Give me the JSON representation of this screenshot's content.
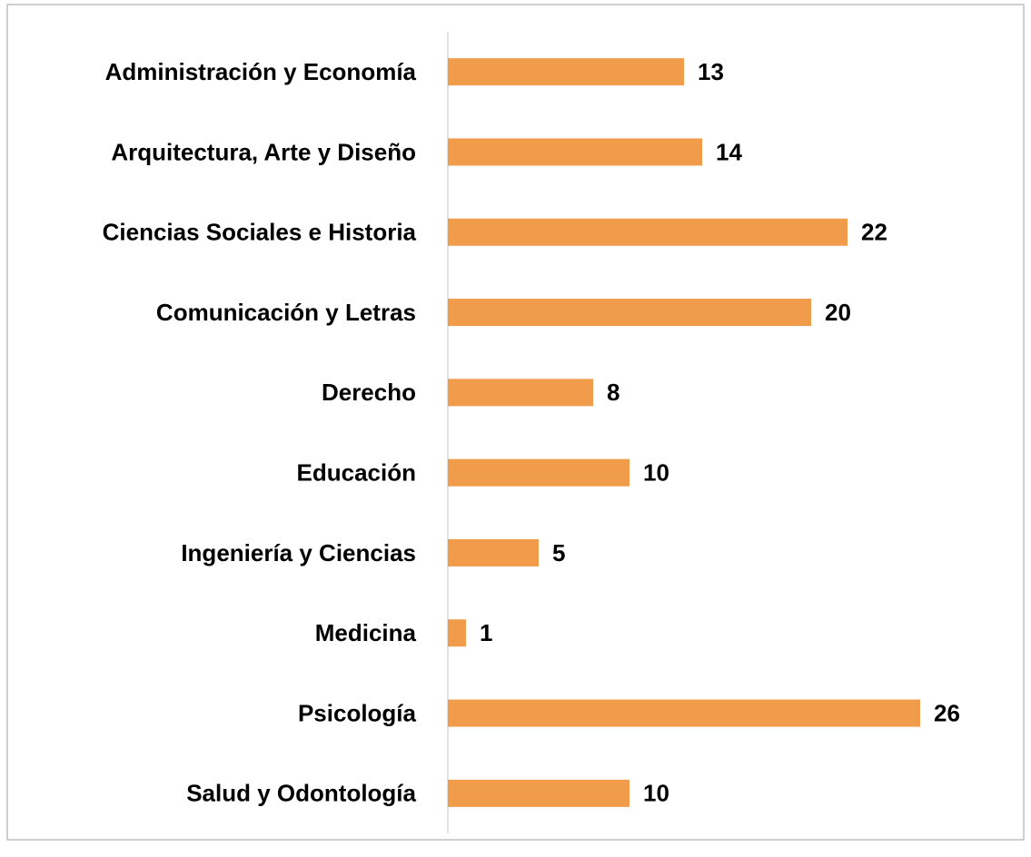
{
  "chart_data": {
    "type": "hbar",
    "categories": [
      "Administración y Economía",
      "Arquitectura, Arte y Diseño",
      "Ciencias Sociales e Historia",
      "Comunicación y Letras",
      "Derecho",
      "Educación",
      "Ingeniería y Ciencias",
      "Medicina",
      "Psicología",
      "Salud y Odontología"
    ],
    "values": [
      13,
      14,
      22,
      20,
      8,
      10,
      5,
      1,
      26,
      10
    ],
    "color": "#f09c4b"
  }
}
